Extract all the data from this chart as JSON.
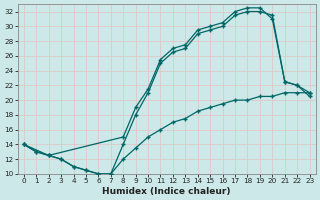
{
  "xlabel": "Humidex (Indice chaleur)",
  "bg_color": "#cce8e8",
  "grid_color": "#d8ecec",
  "line_color": "#006666",
  "xlim": [
    -0.5,
    23.5
  ],
  "ylim": [
    10,
    33
  ],
  "xticks": [
    0,
    1,
    2,
    3,
    4,
    5,
    6,
    7,
    8,
    9,
    10,
    11,
    12,
    13,
    14,
    15,
    16,
    17,
    18,
    19,
    20,
    21,
    22,
    23
  ],
  "yticks": [
    10,
    12,
    14,
    16,
    18,
    20,
    22,
    24,
    26,
    28,
    30,
    32
  ],
  "line1_x": [
    0,
    1,
    2,
    3,
    4,
    5,
    6,
    7,
    8,
    9,
    10,
    11,
    12,
    13,
    14,
    15,
    16,
    17,
    18,
    19,
    20,
    21,
    22,
    23
  ],
  "line1_y": [
    14,
    13,
    12.5,
    12,
    11,
    10.5,
    10,
    10,
    14,
    18,
    21,
    25,
    26.5,
    27,
    29,
    29.5,
    30,
    31.5,
    32,
    32,
    31.5,
    22.5,
    22,
    21
  ],
  "line2_x": [
    0,
    2,
    8,
    9,
    10,
    11,
    12,
    13,
    14,
    15,
    16,
    17,
    18,
    19,
    20,
    21,
    22,
    23
  ],
  "line2_y": [
    14,
    12.5,
    15,
    19,
    21.5,
    25.5,
    27,
    27.5,
    29.5,
    30,
    30.5,
    32,
    32.5,
    32.5,
    31,
    22.5,
    22,
    20.5
  ],
  "line3_x": [
    0,
    1,
    2,
    3,
    4,
    5,
    6,
    7,
    8,
    9,
    10,
    11,
    12,
    13,
    14,
    15,
    16,
    17,
    18,
    19,
    20,
    21,
    22,
    23
  ],
  "line3_y": [
    14,
    13,
    12.5,
    12,
    11,
    10.5,
    10,
    10,
    12,
    13.5,
    15,
    16,
    17,
    17.5,
    18.5,
    19,
    19.5,
    20,
    20,
    20.5,
    20.5,
    21,
    21,
    21
  ]
}
